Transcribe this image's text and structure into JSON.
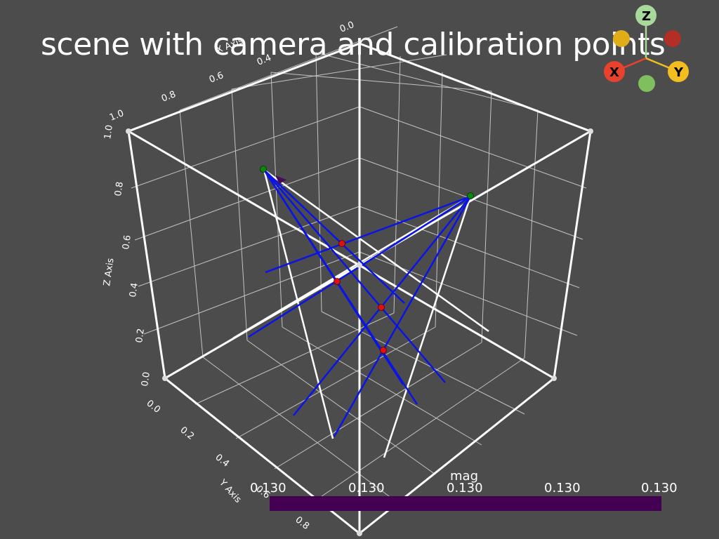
{
  "title": "scene with camera and calibration points",
  "axes": {
    "x_axis_label": "X Axis",
    "y_axis_label": "Y Axis",
    "z_axis_label": "Z Axis",
    "x_ticks": [
      "0.0",
      "0.4",
      "0.6",
      "0.8",
      "1.0"
    ],
    "y_ticks": [
      "0.0",
      "0.2",
      "0.4",
      "0.6",
      "0.8"
    ],
    "z_ticks": [
      "0.0",
      "0.2",
      "0.4",
      "0.6",
      "0.8",
      "1.0"
    ]
  },
  "scalar_bar": {
    "title": "mag",
    "labels": [
      "0.130",
      "0.130",
      "0.130",
      "0.130",
      "0.130"
    ],
    "color": "#440154"
  },
  "orientation_widget": {
    "x_label": "X",
    "y_label": "Y",
    "z_label": "Z",
    "x_color": "#e8422e",
    "y_color": "#f2bd1e",
    "z_color": "#a6d99a",
    "neg_x_color": "#b32e25",
    "neg_y_color": "#e0ad18",
    "neg_z_color": "#7fbf5e"
  },
  "colors": {
    "background": "#4c4c4c",
    "rays": "#0a14e6",
    "calibration_points": "#e01010",
    "camera_points": "#0a8a0a",
    "box": "#ffffff"
  }
}
